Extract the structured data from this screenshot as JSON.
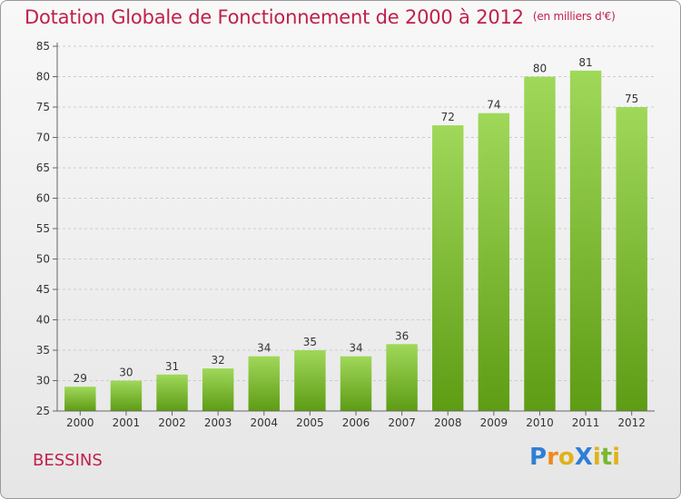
{
  "header": {
    "title": "Dotation Globale de Fonctionnement de 2000 à 2012",
    "unit": "(en milliers d'€)"
  },
  "footer": {
    "place": "BESSINS",
    "brand": "ProXiti"
  },
  "colors": {
    "title": "#c0204a",
    "bar_top": "#a0d85a",
    "bar_bottom": "#5e9c14",
    "grid": "#cccccc"
  },
  "chart_data": {
    "type": "bar",
    "categories": [
      "2000",
      "2001",
      "2002",
      "2003",
      "2004",
      "2005",
      "2006",
      "2007",
      "2008",
      "2009",
      "2010",
      "2011",
      "2012"
    ],
    "values": [
      29,
      30,
      31,
      32,
      34,
      35,
      34,
      36,
      72,
      74,
      80,
      81,
      75
    ],
    "ylim": [
      25,
      85
    ],
    "yticks": [
      25,
      30,
      35,
      40,
      45,
      50,
      55,
      60,
      65,
      70,
      75,
      80,
      85
    ],
    "grid": true,
    "data_labels": true
  }
}
